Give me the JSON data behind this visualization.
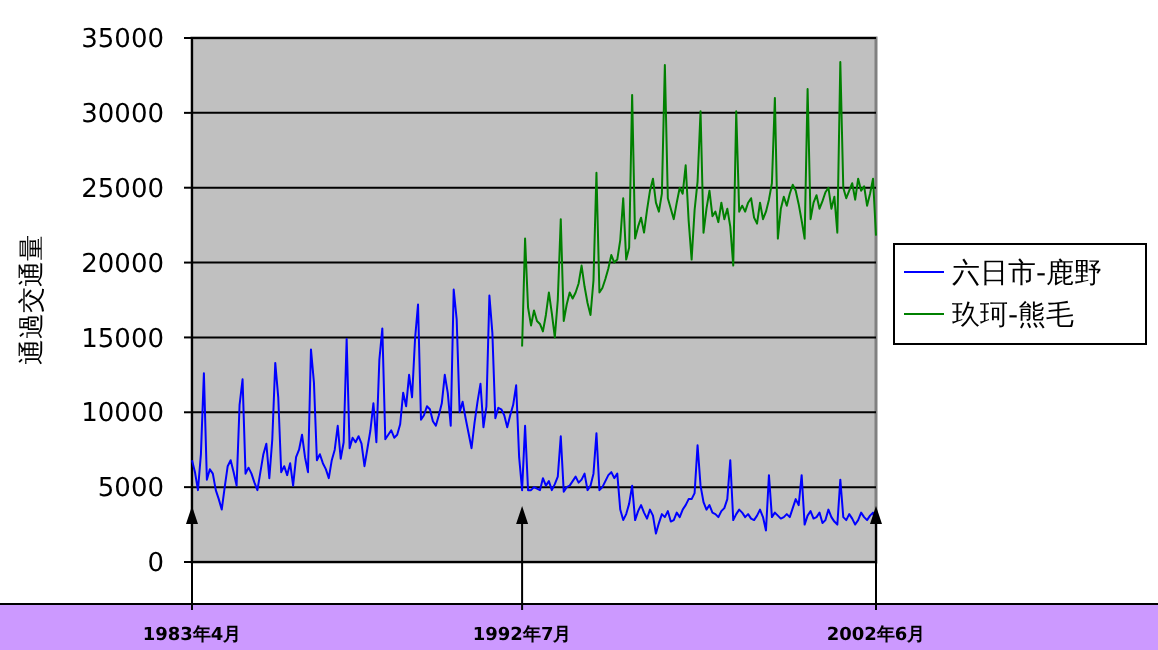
{
  "chart_data": {
    "type": "line",
    "ylabel": "通過交通量",
    "ylim": [
      0,
      35000
    ],
    "yticks": [
      0,
      5000,
      10000,
      15000,
      20000,
      25000,
      30000,
      35000
    ],
    "grid": "y",
    "legend": "right",
    "categories": [
      "1983年4月",
      null,
      null,
      null,
      null,
      null,
      null,
      null,
      null,
      null,
      null,
      null,
      null,
      null,
      null,
      null,
      null,
      null,
      null,
      null,
      null,
      null,
      null,
      null,
      null,
      null,
      null,
      null,
      null,
      null,
      null,
      null,
      null,
      null,
      null,
      null,
      null,
      null,
      null,
      null,
      null,
      null,
      null,
      null,
      null,
      null,
      null,
      null,
      null,
      null,
      null,
      null,
      null,
      null,
      null,
      null,
      null,
      null,
      null,
      null,
      null,
      null,
      null,
      null,
      null,
      null,
      null,
      null,
      null,
      null,
      null,
      null,
      null,
      null,
      null,
      null,
      null,
      null,
      null,
      null,
      null,
      null,
      null,
      null,
      null,
      null,
      null,
      null,
      null,
      null,
      null,
      null,
      null,
      null,
      null,
      null,
      null,
      null,
      null,
      null,
      null,
      null,
      null,
      null,
      null,
      null,
      null,
      null,
      null,
      null,
      null,
      "1992年7月",
      null,
      null,
      null,
      null,
      null,
      null,
      null,
      null,
      null,
      null,
      null,
      null,
      null,
      null,
      null,
      null,
      null,
      null,
      null,
      null,
      null,
      null,
      null,
      null,
      null,
      null,
      null,
      null,
      null,
      null,
      null,
      null,
      null,
      null,
      null,
      null,
      null,
      null,
      null,
      null,
      null,
      null,
      null,
      null,
      null,
      null,
      null,
      null,
      null,
      null,
      null,
      null,
      null,
      null,
      null,
      null,
      null,
      null,
      null,
      null,
      null,
      null,
      null,
      null,
      null,
      null,
      null,
      null,
      null,
      null,
      null,
      null,
      null,
      null,
      null,
      null,
      null,
      null,
      null,
      null,
      null,
      null,
      null,
      null,
      null,
      null,
      null,
      null,
      null,
      null,
      null,
      null,
      null,
      null,
      null,
      null,
      null,
      null,
      null,
      null,
      null,
      null,
      null,
      null,
      null,
      null,
      null,
      null,
      null,
      null,
      null,
      null,
      null,
      null,
      null,
      null,
      null,
      null,
      "2002年6月"
    ],
    "series": [
      {
        "name": "六日市-鹿野",
        "color": "#0000ff",
        "values": [
          6800,
          6000,
          4800,
          7200,
          12600,
          5500,
          6200,
          5900,
          4800,
          4200,
          3500,
          5000,
          6400,
          6800,
          6000,
          5100,
          10500,
          12200,
          5900,
          6300,
          5900,
          5300,
          4800,
          6000,
          7200,
          7900,
          5600,
          8200,
          13300,
          11000,
          6000,
          6400,
          5800,
          6600,
          5100,
          7000,
          7500,
          8500,
          7000,
          6000,
          14200,
          12000,
          6800,
          7200,
          6600,
          6200,
          5600,
          6800,
          7500,
          9100,
          6900,
          8000,
          14900,
          7600,
          8300,
          8000,
          8400,
          7900,
          6400,
          7600,
          8800,
          10600,
          8000,
          13500,
          15600,
          8200,
          8500,
          8800,
          8300,
          8500,
          9200,
          11300,
          10400,
          12500,
          11000,
          14900,
          17200,
          9500,
          9800,
          10400,
          10200,
          9400,
          9100,
          9800,
          10600,
          12500,
          11300,
          9100,
          18200,
          16200,
          10000,
          10700,
          9600,
          8600,
          7600,
          9300,
          10700,
          11900,
          9000,
          10400,
          17800,
          15300,
          9600,
          10300,
          10200,
          9800,
          9000,
          9800,
          10500,
          11800,
          7000,
          4800,
          9100,
          4800,
          4800,
          5000,
          4900,
          4800,
          5600,
          5100,
          5400,
          4800,
          5200,
          5700,
          8400,
          4700,
          5000,
          5100,
          5400,
          5700,
          5300,
          5500,
          5900,
          4800,
          5100,
          5900,
          8600,
          4800,
          5000,
          5400,
          5800,
          6000,
          5600,
          5900,
          3500,
          2800,
          3200,
          3900,
          5100,
          2800,
          3400,
          3800,
          3300,
          2900,
          3500,
          3100,
          1900,
          2600,
          3200,
          3000,
          3400,
          2700,
          2800,
          3300,
          3000,
          3500,
          3800,
          4200,
          4200,
          4600,
          7800,
          5100,
          4000,
          3500,
          3800,
          3300,
          3200,
          3000,
          3400,
          3600,
          4200,
          6800,
          2800,
          3200,
          3500,
          3300,
          3000,
          3200,
          2900,
          2800,
          3100,
          3500,
          3000,
          2100,
          5800,
          3000,
          3300,
          3100,
          2900,
          3000,
          3200,
          3000,
          3600,
          4200,
          3800,
          5800,
          2500,
          3100,
          3400,
          2900,
          3000,
          3300,
          2600,
          2800,
          3500,
          3000,
          2700,
          2500,
          5500,
          3000,
          2800,
          3200,
          2900,
          2500,
          2800,
          3300,
          3000,
          2800,
          3100,
          3300,
          2500
        ]
      },
      {
        "name": "玖珂-熊毛",
        "color": "#008000",
        "values": [
          null,
          null,
          null,
          null,
          null,
          null,
          null,
          null,
          null,
          null,
          null,
          null,
          null,
          null,
          null,
          null,
          null,
          null,
          null,
          null,
          null,
          null,
          null,
          null,
          null,
          null,
          null,
          null,
          null,
          null,
          null,
          null,
          null,
          null,
          null,
          null,
          null,
          null,
          null,
          null,
          null,
          null,
          null,
          null,
          null,
          null,
          null,
          null,
          null,
          null,
          null,
          null,
          null,
          null,
          null,
          null,
          null,
          null,
          null,
          null,
          null,
          null,
          null,
          null,
          null,
          null,
          null,
          null,
          null,
          null,
          null,
          null,
          null,
          null,
          null,
          null,
          null,
          null,
          null,
          null,
          null,
          null,
          null,
          null,
          null,
          null,
          null,
          null,
          null,
          null,
          null,
          null,
          null,
          null,
          null,
          null,
          null,
          null,
          null,
          null,
          null,
          null,
          null,
          null,
          null,
          null,
          null,
          null,
          null,
          null,
          null,
          14400,
          21600,
          17000,
          15800,
          16800,
          16100,
          15900,
          15400,
          16500,
          18000,
          16600,
          15000,
          17500,
          22900,
          16100,
          17200,
          18000,
          17600,
          18000,
          18600,
          19800,
          18400,
          17300,
          16500,
          18800,
          26000,
          18000,
          18300,
          18900,
          19600,
          20500,
          20000,
          20200,
          21500,
          24300,
          20200,
          21000,
          31200,
          21600,
          22400,
          23000,
          22000,
          23500,
          24800,
          25600,
          24000,
          23400,
          24600,
          33200,
          24300,
          23600,
          22900,
          24000,
          25000,
          24600,
          26500,
          22800,
          20200,
          23500,
          25400,
          30100,
          22000,
          23600,
          24800,
          23100,
          23400,
          22700,
          24000,
          22900,
          23600,
          22400,
          19800,
          30100,
          23400,
          23800,
          23400,
          24000,
          24300,
          23000,
          22600,
          24000,
          22900,
          23400,
          24200,
          25300,
          31000,
          21600,
          23600,
          24400,
          23800,
          24600,
          25200,
          24800,
          23900,
          22800,
          21600,
          31600,
          22900,
          24000,
          24500,
          23600,
          24100,
          24700,
          25000,
          23600,
          24400,
          22000,
          33400,
          25000,
          24300,
          24800,
          25300,
          24200,
          25600,
          24800,
          25100,
          23800,
          24600,
          25600,
          21800
        ]
      }
    ]
  }
}
